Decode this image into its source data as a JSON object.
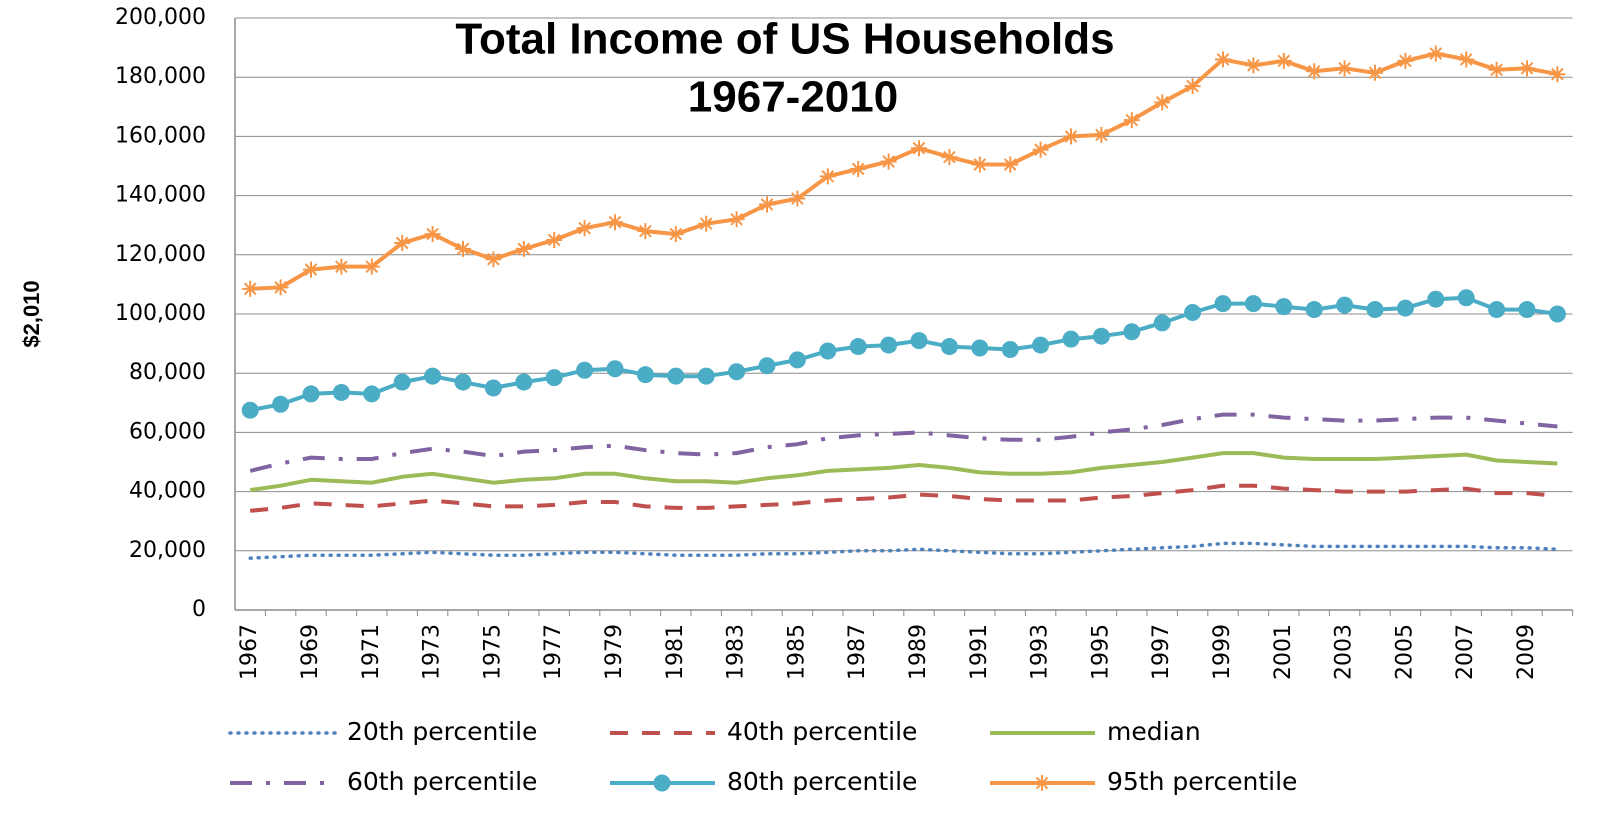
{
  "chart_data": {
    "type": "line",
    "title": "Total Income of US Households",
    "subtitle": "1967-2010",
    "y_label": "$2,010",
    "categories": [
      "1967",
      null,
      "1969",
      null,
      "1971",
      null,
      "1973",
      null,
      "1975",
      null,
      "1977",
      null,
      "1979",
      null,
      "1981",
      null,
      "1983",
      null,
      "1985",
      null,
      "1987",
      null,
      "1989",
      null,
      "1991",
      null,
      "1993",
      null,
      "1995",
      null,
      "1997",
      null,
      "1999",
      null,
      "2001",
      null,
      "2003",
      null,
      "2005",
      null,
      "2007",
      null,
      "2009",
      null
    ],
    "ylim": [
      0,
      200000
    ],
    "yticks": [
      0,
      {
        "value": 20000,
        "label": "20,000"
      },
      {
        "value": 40000,
        "label": "40,000"
      },
      {
        "value": 60000,
        "label": "60,000"
      },
      {
        "value": 80000,
        "label": "80,000"
      },
      {
        "value": 100000,
        "label": "100,000"
      },
      {
        "value": 120000,
        "label": "120,000"
      },
      {
        "value": 140000,
        "label": "140,000"
      },
      {
        "value": 160000,
        "label": "160,000"
      },
      {
        "value": 180000,
        "label": "180,000"
      },
      {
        "value": 200000,
        "label": "200,000"
      }
    ],
    "grid": true,
    "legend": "bottom",
    "series": [
      {
        "name": "20th percentile",
        "color": "#4f81bd",
        "dash": "dotted",
        "marker": "none",
        "values": [
          17500,
          18000,
          18500,
          18500,
          18500,
          19000,
          19500,
          19000,
          18500,
          18500,
          19000,
          19500,
          19500,
          19000,
          18500,
          18500,
          18500,
          19000,
          19000,
          19500,
          20000,
          20000,
          20500,
          20000,
          19500,
          19000,
          19000,
          19500,
          20000,
          20500,
          21000,
          21500,
          22500,
          22500,
          22000,
          21500,
          21500,
          21500,
          21500,
          21500,
          21500,
          21000,
          21000,
          20500
        ]
      },
      {
        "name": "40th percentile",
        "color": "#c0504d",
        "dash": "dashed",
        "marker": "none",
        "values": [
          33500,
          34500,
          36000,
          35500,
          35000,
          36000,
          37000,
          36000,
          35000,
          35000,
          35500,
          36500,
          36500,
          35000,
          34500,
          34500,
          35000,
          35500,
          36000,
          37000,
          37500,
          38000,
          39000,
          38500,
          37500,
          37000,
          37000,
          37000,
          38000,
          38500,
          39500,
          40500,
          42000,
          42000,
          41000,
          40500,
          40000,
          40000,
          40000,
          40500,
          41000,
          39500,
          39500,
          38500
        ]
      },
      {
        "name": "median",
        "color": "#9bbb59",
        "dash": "solid",
        "marker": "none",
        "values": [
          40500,
          42000,
          44000,
          43500,
          43000,
          45000,
          46000,
          44500,
          43000,
          44000,
          44500,
          46000,
          46000,
          44500,
          43500,
          43500,
          43000,
          44500,
          45500,
          47000,
          47500,
          48000,
          49000,
          48000,
          46500,
          46000,
          46000,
          46500,
          48000,
          49000,
          50000,
          51500,
          53000,
          53000,
          51500,
          51000,
          51000,
          51000,
          51500,
          52000,
          52500,
          50500,
          50000,
          49500
        ]
      },
      {
        "name": "60th percentile",
        "color": "#8064a2",
        "dash": "dashdot",
        "marker": "none",
        "values": [
          47000,
          49500,
          51500,
          51000,
          51000,
          53000,
          54500,
          53500,
          52000,
          53500,
          54000,
          55000,
          55500,
          54000,
          53000,
          52500,
          53000,
          55000,
          56000,
          58000,
          59000,
          59500,
          60000,
          59000,
          58000,
          57500,
          57500,
          58500,
          60000,
          61000,
          62500,
          64500,
          66000,
          66000,
          65000,
          64500,
          64000,
          64000,
          64500,
          65000,
          65000,
          64000,
          63000,
          62000
        ]
      },
      {
        "name": "80th percentile",
        "color": "#4bacc6",
        "dash": "solid",
        "marker": "circle",
        "values": [
          67500,
          69500,
          73000,
          73500,
          73000,
          77000,
          79000,
          77000,
          75000,
          77000,
          78500,
          81000,
          81500,
          79500,
          79000,
          79000,
          80500,
          82500,
          84500,
          87500,
          89000,
          89500,
          91000,
          89000,
          88500,
          88000,
          89500,
          91500,
          92500,
          94000,
          97000,
          100500,
          103500,
          103500,
          102500,
          101500,
          103000,
          101500,
          102000,
          105000,
          105500,
          101500,
          101500,
          100000
        ]
      },
      {
        "name": "95th percentile",
        "color": "#f79646",
        "dash": "solid",
        "marker": "asterisk",
        "values": [
          108500,
          109000,
          115000,
          116000,
          116000,
          124000,
          127000,
          122000,
          118500,
          122000,
          125000,
          129000,
          131000,
          128000,
          127000,
          130500,
          132000,
          137000,
          139000,
          146500,
          149000,
          151500,
          156000,
          153000,
          150500,
          150500,
          155500,
          160000,
          160500,
          165500,
          171500,
          177000,
          186000,
          184000,
          185500,
          182000,
          183000,
          181500,
          185500,
          188000,
          186000,
          182500,
          183000,
          181000
        ]
      }
    ]
  }
}
